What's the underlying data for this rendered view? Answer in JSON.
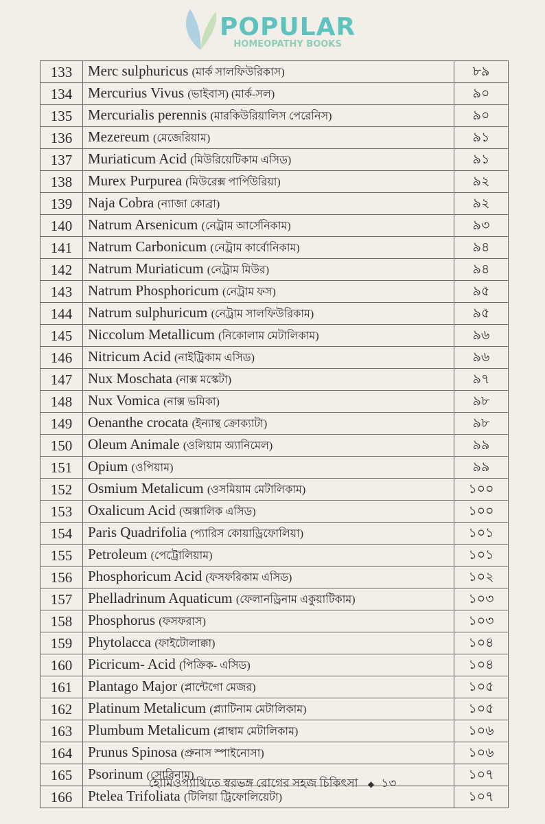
{
  "table": {
    "rows": [
      [
        "133",
        "Merc sulphuricus",
        "(মার্ক সালফিউরিকাস)",
        "৮৯"
      ],
      [
        "134",
        "Mercurius Vivus",
        "(ভাইবাস) (মার্ক-সল)",
        "৯০"
      ],
      [
        "135",
        "Mercurialis perennis",
        "(মারকিউরিয়ালিস পেরেনিস)",
        "৯০"
      ],
      [
        "136",
        "Mezereum",
        "(মেজেরিয়াম)",
        "৯১"
      ],
      [
        "137",
        "Muriaticum Acid",
        "(মিউরিয়েটিকাম এসিড)",
        "৯১"
      ],
      [
        "138",
        "Murex Purpurea",
        "(মিউরেক্স পার্পিউরিয়া)",
        "৯২"
      ],
      [
        "139",
        "Naja Cobra",
        "(ন্যাজা কোব্রা)",
        "৯২"
      ],
      [
        "140",
        "Natrum Arsenicum",
        "(নেট্রাম আর্সেনিকাম)",
        "৯৩"
      ],
      [
        "141",
        "Natrum Carbonicum",
        "(নেট্রাম কার্বোনিকাম)",
        "৯৪"
      ],
      [
        "142",
        "Natrum Muriaticum",
        "(নেট্রাম মিউর)",
        "৯৪"
      ],
      [
        "143",
        "Natrum Phosphoricum",
        "(নেট্রাম ফস)",
        "৯৫"
      ],
      [
        "144",
        "Natrum sulphuricum",
        "(নেট্রাম সালফিউরিকাম)",
        "৯৫"
      ],
      [
        "145",
        "Niccolum Metallicum",
        "(নিকোলাম মেটালিকাম)",
        "৯৬"
      ],
      [
        "146",
        "Nitricum Acid",
        "(নাইট্রিকাম এসিড)",
        "৯৬"
      ],
      [
        "147",
        "Nux Moschata",
        "(নাক্স মস্কেটা)",
        "৯৭"
      ],
      [
        "148",
        "Nux Vomica",
        "(নাক্স ভমিকা)",
        "৯৮"
      ],
      [
        "149",
        "Oenanthe crocata",
        "(ইন্যান্থ ক্রোক্যাটা)",
        "৯৮"
      ],
      [
        "150",
        "Oleum Animale",
        "(ওলিয়াম অ্যানিমেল)",
        "৯৯"
      ],
      [
        "151",
        "Opium",
        "(ওপিয়াম)",
        "৯৯"
      ],
      [
        "152",
        "Osmium Metalicum",
        "(ওসমিয়াম মেটালিকাম)",
        "১০০"
      ],
      [
        "153",
        "Oxalicum Acid",
        "(অক্সালিক এসিড)",
        "১০০"
      ],
      [
        "154",
        "Paris Quadrifolia",
        "(প্যারিস কোয়াড্রিফোলিয়া)",
        "১০১"
      ],
      [
        "155",
        "Petroleum",
        "(পেট্রোলিয়াম)",
        "১০১"
      ],
      [
        "156",
        "Phosphoricum Acid",
        "(ফসফরিকাম এসিড)",
        "১০২"
      ],
      [
        "157",
        "Phelladrinum Aquaticum",
        "(ফেলানড্রিনাম একুয়াটিকাম)",
        "১০৩"
      ],
      [
        "158",
        "Phosphorus",
        "(ফসফরাস)",
        "১০৩"
      ],
      [
        "159",
        "Phytolacca",
        "(ফাইটোলাক্কা)",
        "১০৪"
      ],
      [
        "160",
        "Picricum- Acid",
        "(পিক্রিক- এসিড)",
        "১০৪"
      ],
      [
        "161",
        "Plantago Major",
        "(প্লান্টেগো মেজর)",
        "১০৫"
      ],
      [
        "162",
        "Platinum Metalicum",
        "(প্ল্যাটিনাম মেটালিকাম)",
        "১০৫"
      ],
      [
        "163",
        "Plumbum Metalicum",
        "(প্লাম্বাম মেটালিকাম)",
        "১০৬"
      ],
      [
        "164",
        "Prunus Spinosa",
        "(প্রুনাস স্পাইনোসা)",
        "১০৬"
      ],
      [
        "165",
        "Psorinum",
        "(সোরিনাম)",
        "১০৭"
      ],
      [
        "166",
        "Ptelea Trifoliata",
        "(টিলিয়া ট্রিফোলিয়েটা)",
        "১০৭"
      ]
    ]
  },
  "watermark": {
    "line1": "POPULAR",
    "line2": "HOMEOPATHY BOOKS",
    "color": "#2fb3b0"
  },
  "footer": {
    "title": "হোমিওপ্যাথিতে স্বরভঙ্গ রোগের সহজ চিকিৎসা",
    "bullet": "◆",
    "page": "১৩"
  }
}
